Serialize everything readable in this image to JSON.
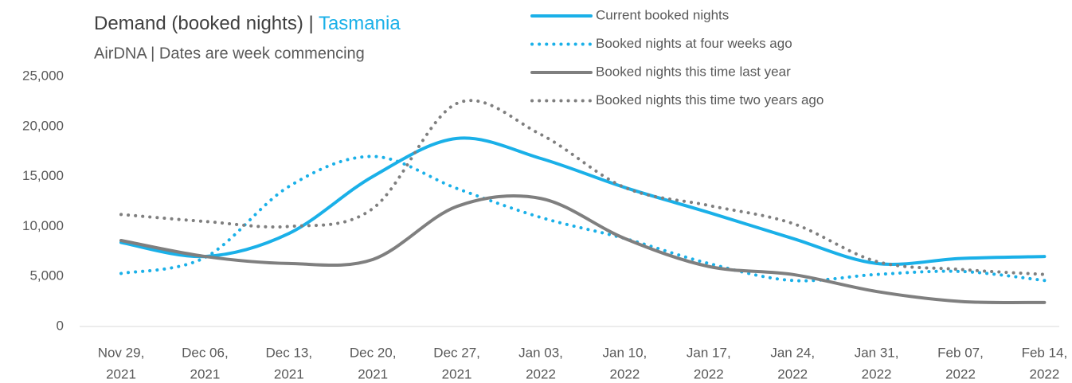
{
  "chart_data": {
    "type": "line",
    "title": "Demand (booked nights) |",
    "title_highlight": "Tasmania",
    "subtitle": "AirDNA | Dates are week commencing",
    "categories": [
      [
        "Nov 29,",
        "2021"
      ],
      [
        "Dec 06,",
        "2021"
      ],
      [
        "Dec 13,",
        "2021"
      ],
      [
        "Dec 20,",
        "2021"
      ],
      [
        "Dec 27,",
        "2021"
      ],
      [
        "Jan 03,",
        "2022"
      ],
      [
        "Jan 10,",
        "2022"
      ],
      [
        "Jan 17,",
        "2022"
      ],
      [
        "Jan 24,",
        "2022"
      ],
      [
        "Jan 31,",
        "2022"
      ],
      [
        "Feb 07,",
        "2022"
      ],
      [
        "Feb 14,",
        "2022"
      ]
    ],
    "series": [
      {
        "name": "Current booked nights",
        "color": "#1ab0e8",
        "dash": "solid",
        "values": [
          8400,
          7000,
          9300,
          15000,
          18800,
          16800,
          13900,
          11400,
          8800,
          6300,
          6800,
          7000
        ]
      },
      {
        "name": "Booked nights at four weeks ago",
        "color": "#1ab0e8",
        "dash": "dotted",
        "values": [
          5300,
          6900,
          14000,
          17000,
          13800,
          10900,
          8800,
          6300,
          4600,
          5200,
          5500,
          4600
        ]
      },
      {
        "name": "Booked nights this time last year",
        "color": "#7f7f7f",
        "dash": "solid",
        "values": [
          8600,
          7000,
          6300,
          6700,
          12000,
          12800,
          8800,
          6000,
          5200,
          3500,
          2500,
          2400
        ]
      },
      {
        "name": "Booked nights this time two years ago",
        "color": "#7f7f7f",
        "dash": "dotted",
        "values": [
          11200,
          10500,
          10000,
          11800,
          22300,
          19200,
          13900,
          12100,
          10300,
          6500,
          5700,
          5200
        ]
      }
    ],
    "ylim": [
      0,
      25000
    ],
    "yticks": [
      0,
      {
        "value": 5000,
        "label": "5,000"
      },
      {
        "value": 10000,
        "label": "10,000"
      },
      {
        "value": 15000,
        "label": "15,000"
      },
      {
        "value": 20000,
        "label": "20,000"
      },
      {
        "value": 25000,
        "label": "25,000"
      }
    ],
    "grid": false
  }
}
